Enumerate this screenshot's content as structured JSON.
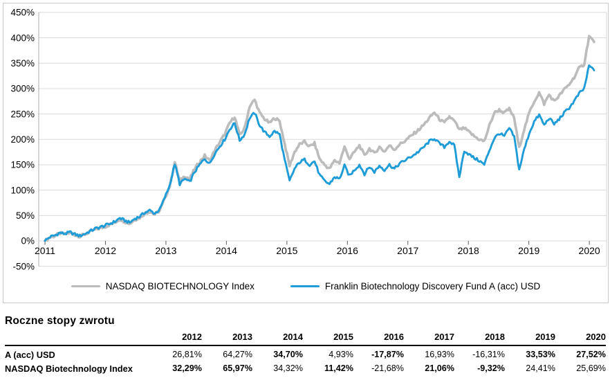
{
  "chart_data": {
    "type": "line",
    "title": "",
    "x_start_year": 2011,
    "points_per_year": 12,
    "x_tick_labels": [
      "2011",
      "2012",
      "2013",
      "2014",
      "2015",
      "2016",
      "2017",
      "2018",
      "2019",
      "2020"
    ],
    "ylim": [
      -50,
      450
    ],
    "y_tick_step": 50,
    "y_ticks": [
      {
        "label": "450%",
        "value": 450
      },
      {
        "label": "400%",
        "value": 400
      },
      {
        "label": "350%",
        "value": 350
      },
      {
        "label": "300%",
        "value": 300
      },
      {
        "label": "250%",
        "value": 250
      },
      {
        "label": "200%",
        "value": 200
      },
      {
        "label": "150%",
        "value": 150
      },
      {
        "label": "100%",
        "value": 100
      },
      {
        "label": "50%",
        "value": 50
      },
      {
        "label": "0%",
        "value": 0
      },
      {
        "label": "-50%",
        "value": -50
      }
    ],
    "grid": "horizontal",
    "legend_position": "bottom",
    "series": [
      {
        "name": "NASDAQ BIOTECHNOLOGY Index",
        "color": "#bcbcbc",
        "values": [
          0,
          7,
          10,
          15,
          13,
          16,
          12,
          9,
          13,
          18,
          22,
          25,
          28,
          32,
          36,
          43,
          38,
          34,
          42,
          46,
          54,
          58,
          52,
          60,
          83,
          108,
          155,
          118,
          128,
          122,
          142,
          156,
          168,
          158,
          178,
          194,
          210,
          232,
          245,
          208,
          222,
          265,
          278,
          252,
          240,
          232,
          242,
          236,
          192,
          148,
          175,
          190,
          195,
          186,
          192,
          162,
          150,
          142,
          158,
          154,
          185,
          162,
          175,
          188,
          168,
          182,
          172,
          185,
          176,
          188,
          180,
          190,
          196,
          204,
          212,
          220,
          230,
          242,
          253,
          240,
          232,
          245,
          236,
          219,
          222,
          214,
          206,
          200,
          196,
          226,
          252,
          258,
          252,
          260,
          242,
          183,
          220,
          252,
          275,
          292,
          270,
          288,
          275,
          286,
          298,
          308,
          322,
          340,
          348,
          403,
          392
        ]
      },
      {
        "name": "Franklin Biotechnology Discovery Fund A (acc) USD",
        "color": "#1e9cd8",
        "values": [
          0,
          8,
          11,
          16,
          14,
          17,
          13,
          10,
          14,
          19,
          24,
          27,
          30,
          34,
          38,
          45,
          40,
          36,
          44,
          48,
          56,
          60,
          54,
          62,
          85,
          110,
          152,
          112,
          122,
          116,
          136,
          150,
          162,
          152,
          172,
          186,
          200,
          220,
          232,
          198,
          210,
          242,
          252,
          228,
          214,
          206,
          216,
          210,
          160,
          118,
          142,
          155,
          160,
          150,
          157,
          130,
          118,
          112,
          126,
          122,
          148,
          128,
          140,
          150,
          132,
          146,
          136,
          148,
          140,
          150,
          142,
          152,
          158,
          164,
          170,
          177,
          186,
          196,
          202,
          192,
          185,
          196,
          188,
          126,
          178,
          170,
          163,
          158,
          150,
          178,
          202,
          212,
          206,
          222,
          205,
          140,
          180,
          212,
          235,
          248,
          228,
          242,
          230,
          240,
          252,
          262,
          275,
          290,
          300,
          345,
          336
        ]
      }
    ]
  },
  "table": {
    "title": "Roczne stopy zwrotu",
    "years": [
      "2012",
      "2013",
      "2014",
      "2015",
      "2016",
      "2017",
      "2018",
      "2019",
      "2020"
    ],
    "rows": [
      {
        "label": "A (acc) USD",
        "values": [
          {
            "text": "26,81%",
            "bold": false
          },
          {
            "text": "64,27%",
            "bold": false
          },
          {
            "text": "34,70%",
            "bold": true
          },
          {
            "text": "4,93%",
            "bold": false
          },
          {
            "text": "-17,87%",
            "bold": true
          },
          {
            "text": "16,93%",
            "bold": false
          },
          {
            "text": "-16,31%",
            "bold": false
          },
          {
            "text": "33,53%",
            "bold": true
          },
          {
            "text": "27,52%",
            "bold": true
          }
        ]
      },
      {
        "label": "NASDAQ Biotechnology Index",
        "values": [
          {
            "text": "32,29%",
            "bold": true
          },
          {
            "text": "65,97%",
            "bold": true
          },
          {
            "text": "34,32%",
            "bold": false
          },
          {
            "text": "11,42%",
            "bold": true
          },
          {
            "text": "-21,68%",
            "bold": false
          },
          {
            "text": "21,06%",
            "bold": true
          },
          {
            "text": "-9,32%",
            "bold": true
          },
          {
            "text": "24,41%",
            "bold": false
          },
          {
            "text": "25,69%",
            "bold": false
          }
        ]
      }
    ]
  }
}
